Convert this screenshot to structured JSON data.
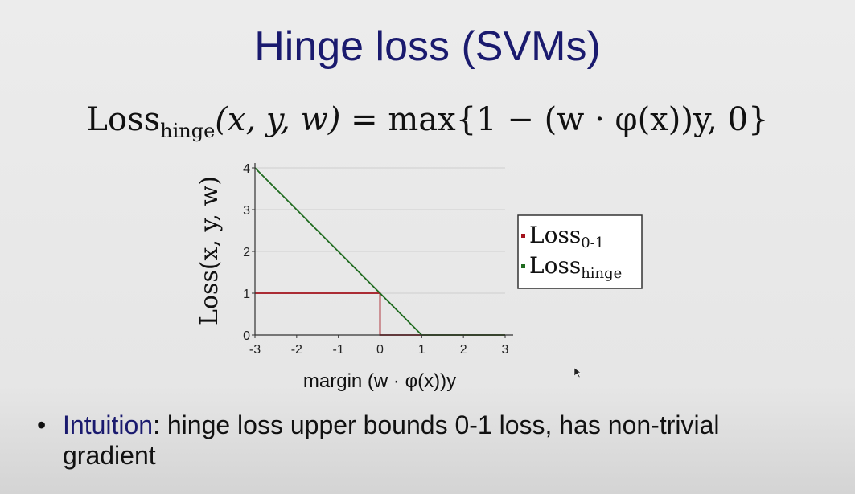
{
  "slide": {
    "title": "Hinge loss (SVMs)",
    "formula": {
      "lhs_word": "Loss",
      "lhs_sub": "hinge",
      "args": "(x, y, w)",
      "rhs": "= max{1 − (w · φ(x))y, 0}"
    },
    "bullet": {
      "keyword": "Intuition",
      "rest": ": hinge loss upper bounds 0-1 loss, has non-trivial",
      "line2": "gradient"
    }
  },
  "chart_data": {
    "type": "line",
    "xlabel": "margin (w · φ(x))y",
    "ylabel": "Loss(x, y, w)",
    "xlim": [
      -3,
      3
    ],
    "ylim": [
      0,
      4
    ],
    "x_ticks": [
      "-3",
      "-2",
      "-1",
      "0",
      "1",
      "2",
      "3"
    ],
    "y_ticks": [
      "0",
      "1",
      "2",
      "3",
      "4"
    ],
    "grid": "horizontal",
    "legend_position": "right",
    "series": [
      {
        "name": "Loss0-1",
        "name_main": "Loss",
        "name_sub": "0-1",
        "color": "#a3121c",
        "points": [
          [
            -3,
            1
          ],
          [
            0,
            1
          ],
          [
            0,
            0
          ],
          [
            3,
            0
          ]
        ]
      },
      {
        "name": "Losshinge",
        "name_main": "Loss",
        "name_sub": "hinge",
        "color": "#1f6b1f",
        "points": [
          [
            -3,
            4
          ],
          [
            1,
            0
          ],
          [
            3,
            0
          ]
        ]
      }
    ]
  }
}
